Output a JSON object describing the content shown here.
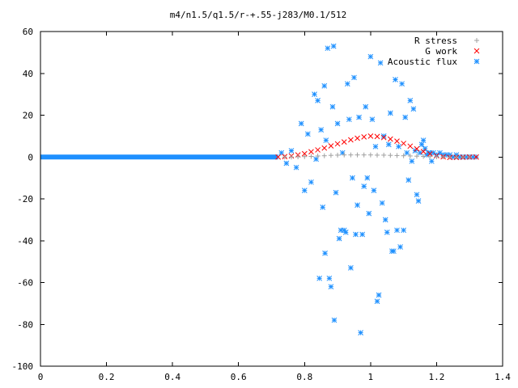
{
  "chart_data": {
    "type": "scatter",
    "title": "m4/n1.5/q1.5/r-+.55-j283/M0.1/512",
    "xlabel": "",
    "ylabel": "",
    "xlim": [
      0,
      1.4
    ],
    "ylim": [
      -100,
      60
    ],
    "xticks": [
      0,
      0.2,
      0.4,
      0.6,
      0.8,
      1,
      1.2,
      1.4
    ],
    "yticks": [
      -100,
      -80,
      -60,
      -40,
      -20,
      0,
      20,
      40,
      60
    ],
    "xtick_labels": [
      "0",
      "0.2",
      "0.4",
      "0.6",
      "0.8",
      "1",
      "1.2",
      "1.4"
    ],
    "ytick_labels": [
      "-100",
      "-80",
      "-60",
      "-40",
      "-20",
      "0",
      "20",
      "40",
      "60"
    ],
    "grid": false,
    "legend_position": "top-right",
    "series": [
      {
        "name": "R stress",
        "marker": "+",
        "color": "#a0a0a0",
        "x": [
          0.74,
          0.76,
          0.78,
          0.8,
          0.82,
          0.84,
          0.86,
          0.88,
          0.9,
          0.92,
          0.94,
          0.96,
          0.98,
          1.0,
          1.02,
          1.04,
          1.06,
          1.08,
          1.1,
          1.12,
          1.14,
          1.16,
          1.18,
          1.2,
          1.22,
          1.24,
          1.26,
          1.28,
          1.3
        ],
        "y": [
          0,
          0,
          0.1,
          0.2,
          0.3,
          0.5,
          0.6,
          0.8,
          0.9,
          1.0,
          1.0,
          1.0,
          1.0,
          1.0,
          0.9,
          0.9,
          0.8,
          0.7,
          0.6,
          0.5,
          0.4,
          0.3,
          0.2,
          0.1,
          0.1,
          0,
          0,
          0,
          0
        ]
      },
      {
        "name": "G work",
        "marker": "x",
        "color": "#ff0000",
        "x": [
          0.72,
          0.74,
          0.76,
          0.78,
          0.8,
          0.82,
          0.84,
          0.86,
          0.88,
          0.9,
          0.92,
          0.94,
          0.96,
          0.98,
          1.0,
          1.02,
          1.04,
          1.06,
          1.08,
          1.1,
          1.12,
          1.14,
          1.16,
          1.18,
          1.2,
          1.22,
          1.24,
          1.26,
          1.28,
          1.3,
          1.32
        ],
        "y": [
          0,
          0.2,
          0.5,
          1.0,
          1.6,
          2.5,
          3.4,
          4.3,
          5.3,
          6.3,
          7.2,
          8.2,
          9.0,
          9.6,
          10.0,
          9.8,
          9.3,
          8.6,
          7.6,
          6.5,
          5.2,
          3.9,
          2.6,
          1.5,
          0.6,
          0.1,
          -0.2,
          -0.2,
          -0.1,
          0,
          0
        ]
      },
      {
        "name": "Acoustic flux",
        "marker": "*",
        "color": "#1e90ff",
        "baseline": {
          "x_start": 0,
          "x_end": 0.72,
          "y": 0
        },
        "x": [
          0.73,
          0.745,
          0.76,
          0.775,
          0.79,
          0.8,
          0.81,
          0.82,
          0.83,
          0.835,
          0.84,
          0.845,
          0.85,
          0.855,
          0.86,
          0.862,
          0.865,
          0.87,
          0.875,
          0.88,
          0.885,
          0.888,
          0.89,
          0.895,
          0.9,
          0.905,
          0.91,
          0.915,
          0.92,
          0.925,
          0.93,
          0.935,
          0.94,
          0.945,
          0.95,
          0.955,
          0.96,
          0.965,
          0.97,
          0.975,
          0.98,
          0.985,
          0.99,
          0.995,
          1.0,
          1.005,
          1.01,
          1.015,
          1.02,
          1.025,
          1.03,
          1.035,
          1.04,
          1.045,
          1.05,
          1.055,
          1.06,
          1.065,
          1.07,
          1.075,
          1.08,
          1.085,
          1.09,
          1.095,
          1.1,
          1.105,
          1.11,
          1.115,
          1.12,
          1.125,
          1.13,
          1.135,
          1.14,
          1.145,
          1.15,
          1.155,
          1.16,
          1.165,
          1.17,
          1.175,
          1.18,
          1.185,
          1.19,
          1.2,
          1.21,
          1.22,
          1.23,
          1.24,
          1.25,
          1.26,
          1.27,
          1.28,
          1.29,
          1.3,
          1.31,
          1.32
        ],
        "y": [
          2,
          -3,
          3,
          -5,
          16,
          -16,
          11,
          -12,
          30,
          -1,
          27,
          -58,
          13,
          -24,
          34,
          -46,
          8,
          52,
          -58,
          -62,
          24,
          53,
          -78,
          -17,
          16,
          -39,
          -35,
          2,
          -35,
          -36,
          35,
          18,
          -53,
          -10,
          38,
          -37,
          -23,
          19,
          -84,
          -37,
          -14,
          24,
          -10,
          -27,
          48,
          18,
          -16,
          5,
          -69,
          -66,
          45,
          -22,
          10,
          -30,
          -36,
          6,
          21,
          -45,
          -45,
          37,
          -35,
          5,
          -43,
          35,
          -35,
          19,
          2,
          -11,
          27,
          -2,
          23,
          3,
          -18,
          -21,
          2,
          6,
          8,
          4,
          1,
          2,
          2,
          -2,
          2,
          1,
          2,
          1,
          1,
          1,
          0,
          1,
          0,
          0,
          0,
          0,
          0,
          0
        ]
      }
    ]
  }
}
